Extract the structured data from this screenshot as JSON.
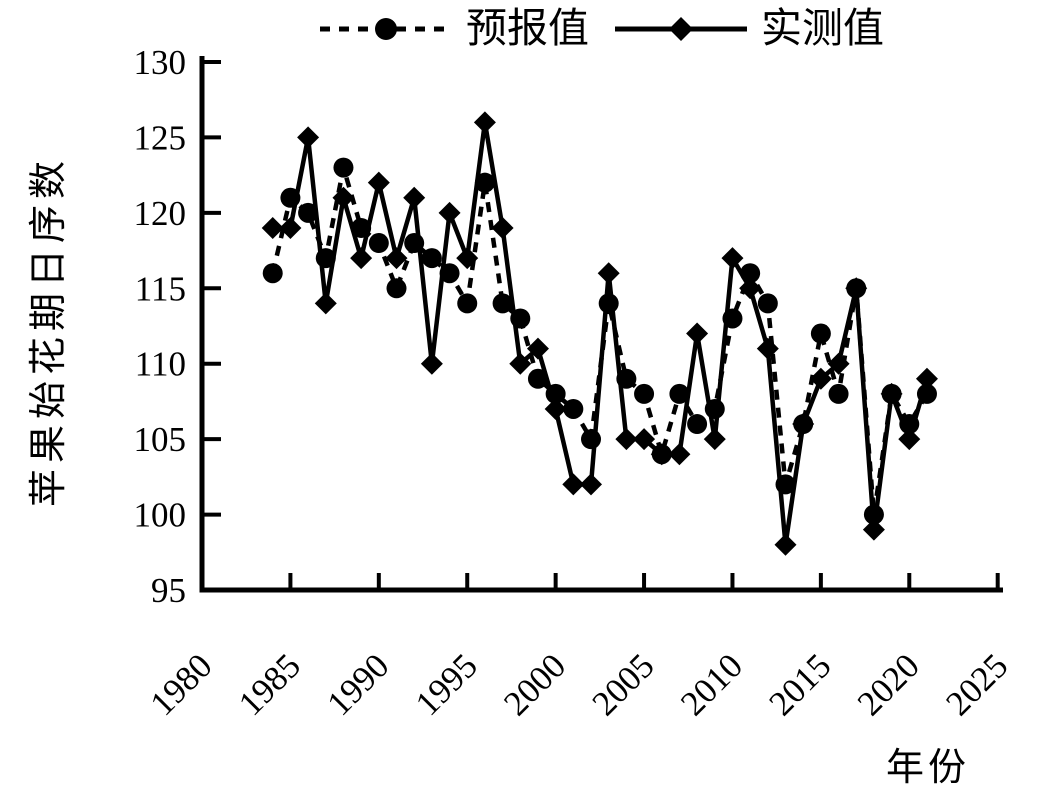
{
  "figure": {
    "background": "#ffffff",
    "axis_color": "#000000",
    "series_color": "#000000"
  },
  "legend": {
    "items": [
      {
        "label": "预报值",
        "line_style": "dashed",
        "marker": "circle"
      },
      {
        "label": "实测值",
        "line_style": "solid",
        "marker": "diamond"
      }
    ]
  },
  "chart_data": {
    "type": "line",
    "title": "",
    "xlabel": "年份",
    "ylabel": "苹果始花期日序数",
    "legend_position": "top",
    "grid": false,
    "xlim": [
      1980,
      2025.3
    ],
    "ylim": [
      95,
      130
    ],
    "x_ticks": [
      1980,
      1985,
      1990,
      1995,
      2000,
      2005,
      2010,
      2015,
      2020,
      2025
    ],
    "y_ticks": [
      95,
      100,
      105,
      110,
      115,
      120,
      125,
      130
    ],
    "x": [
      1984,
      1985,
      1986,
      1987,
      1988,
      1989,
      1990,
      1991,
      1992,
      1993,
      1994,
      1995,
      1996,
      1997,
      1998,
      1999,
      2000,
      2001,
      2002,
      2003,
      2004,
      2005,
      2006,
      2007,
      2008,
      2009,
      2010,
      2011,
      2012,
      2013,
      2014,
      2015,
      2016,
      2017,
      2018,
      2019,
      2020,
      2021
    ],
    "series": [
      {
        "name": "预报值",
        "marker": "circle",
        "line": "dashed",
        "values": [
          116,
          121,
          120,
          117,
          123,
          119,
          118,
          115,
          118,
          117,
          116,
          114,
          122,
          114,
          113,
          109,
          108,
          107,
          105,
          114,
          109,
          108,
          104,
          108,
          106,
          107,
          113,
          116,
          114,
          102,
          106,
          112,
          108,
          115,
          100,
          108,
          106,
          108
        ]
      },
      {
        "name": "实测值",
        "marker": "diamond",
        "line": "solid",
        "values": [
          119,
          119,
          125,
          114,
          121,
          117,
          122,
          117,
          121,
          110,
          120,
          117,
          126,
          119,
          110,
          111,
          107,
          102,
          102,
          116,
          105,
          105,
          104,
          104,
          112,
          105,
          117,
          115,
          111,
          98,
          106,
          109,
          110,
          115,
          99,
          108,
          105,
          109
        ]
      }
    ]
  }
}
